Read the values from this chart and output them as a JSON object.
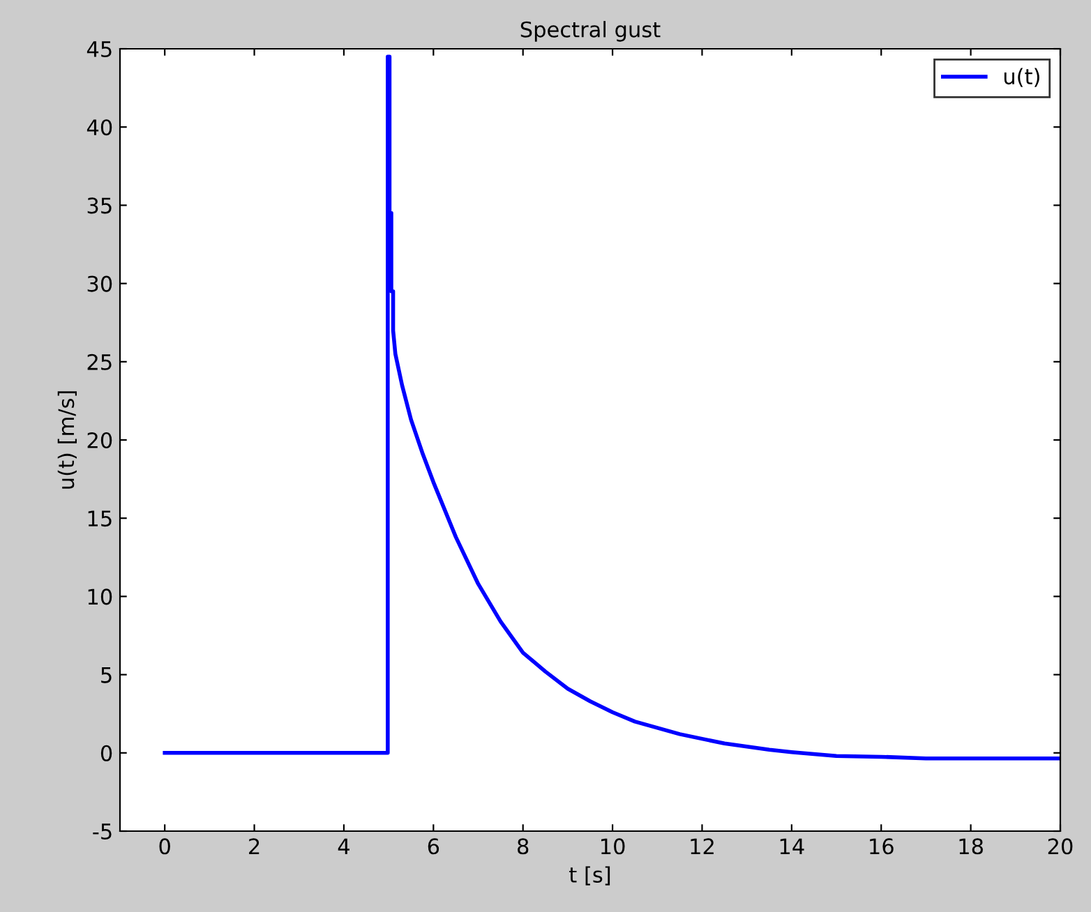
{
  "chart_data": {
    "type": "line",
    "title": "Spectral gust",
    "xlabel": "t [s]",
    "ylabel": "u(t) [m/s]",
    "x": [
      0,
      4.98,
      4.98,
      5.02,
      5.02,
      5.06,
      5.06,
      5.1,
      5.1,
      5.15,
      5.3,
      5.5,
      5.75,
      6,
      6.5,
      7,
      7.5,
      8,
      8.5,
      9,
      9.5,
      10,
      10.5,
      11,
      11.5,
      12,
      12.5,
      13,
      13.5,
      14,
      15,
      16,
      17,
      18,
      19,
      20
    ],
    "series": [
      {
        "name": "u(t)",
        "color": "#0000ff",
        "values": [
          0,
          0,
          44.5,
          44.5,
          34.5,
          34.5,
          29.5,
          29.5,
          27,
          25.5,
          23.5,
          21.3,
          19.2,
          17.3,
          13.8,
          10.8,
          8.4,
          6.4,
          5.2,
          4.1,
          3.3,
          2.6,
          2.0,
          1.6,
          1.2,
          0.9,
          0.6,
          0.4,
          0.2,
          0.05,
          -0.2,
          -0.25,
          -0.35,
          -0.35,
          -0.35,
          -0.35
        ]
      }
    ],
    "xlim": [
      -1,
      20
    ],
    "ylim": [
      -5,
      45
    ],
    "xticks": [
      0,
      2,
      4,
      6,
      8,
      10,
      12,
      14,
      16,
      18,
      20
    ],
    "yticks": [
      -5,
      0,
      5,
      10,
      15,
      20,
      25,
      30,
      35,
      40,
      45
    ],
    "legend": "top right",
    "grid": false,
    "marker": "none",
    "line_style": "solid"
  }
}
